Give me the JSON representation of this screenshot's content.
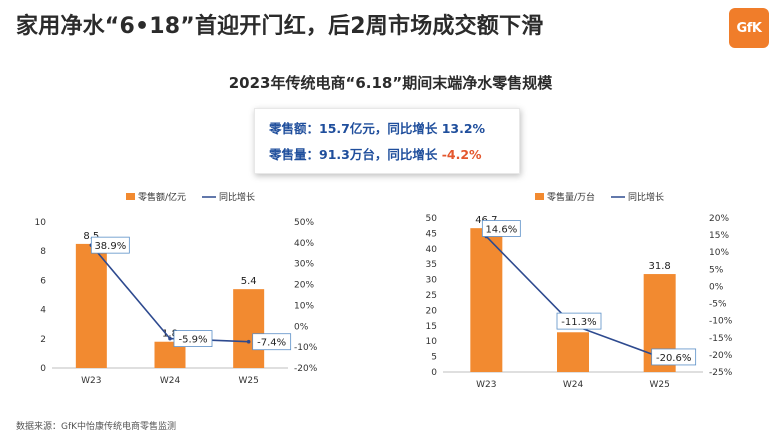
{
  "headline": "家用净水“6•18”首迎开门红，后2周市场成交额下滑",
  "logo": "GfK",
  "subtitle": "2023年传统电商“6.18”期间末端净水零售规模",
  "summary": {
    "sales_value_label": "零售额：",
    "sales_value_text": "15.7亿元，同比增长 13.2%",
    "sales_volume_label": "零售量：",
    "sales_volume_text": "91.3万台，同比增长 ",
    "sales_volume_growth": "-4.2%"
  },
  "footer": "数据来源：GfK中怡康传统电商零售监测",
  "colors": {
    "bar": "#f28a30",
    "line": "#2e4a8f",
    "accent_blue": "#1f4e9c",
    "negative": "#e4572e"
  },
  "chart_data": [
    {
      "type": "bar",
      "categories": [
        "W23",
        "W24",
        "W25"
      ],
      "series": [
        {
          "name": "零售额/亿元",
          "type": "bar",
          "axis": "left",
          "values": [
            8.5,
            1.8,
            5.4
          ],
          "labels": [
            "8.5",
            "1.8",
            "5.4"
          ]
        },
        {
          "name": "同比增长",
          "type": "line",
          "axis": "right",
          "values": [
            38.9,
            -5.9,
            -7.4
          ],
          "labels": [
            "38.9%",
            "-5.9%",
            "-7.4%"
          ]
        }
      ],
      "y_left": {
        "min": 0,
        "max": 10,
        "ticks": [
          "0",
          "2",
          "4",
          "6",
          "8",
          "10"
        ]
      },
      "y_right": {
        "min": -20,
        "max": 50,
        "ticks": [
          "-20%",
          "-10%",
          "0%",
          "10%",
          "20%",
          "30%",
          "40%",
          "50%"
        ]
      },
      "legend": "top-center",
      "grid": false
    },
    {
      "type": "bar",
      "categories": [
        "W23",
        "W24",
        "W25"
      ],
      "series": [
        {
          "name": "零售量/万台",
          "type": "bar",
          "axis": "left",
          "values": [
            46.7,
            12.9,
            31.8
          ],
          "labels": [
            "46.7",
            "12.9",
            "31.8"
          ]
        },
        {
          "name": "同比增长",
          "type": "line",
          "axis": "right",
          "values": [
            14.6,
            -11.3,
            -20.6
          ],
          "labels": [
            "14.6%",
            "-11.3%",
            "-20.6%"
          ]
        }
      ],
      "y_left": {
        "min": 0,
        "max": 50,
        "ticks": [
          "0",
          "5",
          "10",
          "15",
          "20",
          "25",
          "30",
          "35",
          "40",
          "45",
          "50"
        ]
      },
      "y_right": {
        "min": -25,
        "max": 20,
        "ticks": [
          "-25%",
          "-20%",
          "-15%",
          "-10%",
          "-5%",
          "0%",
          "5%",
          "10%",
          "15%",
          "20%"
        ]
      },
      "legend": "top-center",
      "grid": false
    }
  ]
}
